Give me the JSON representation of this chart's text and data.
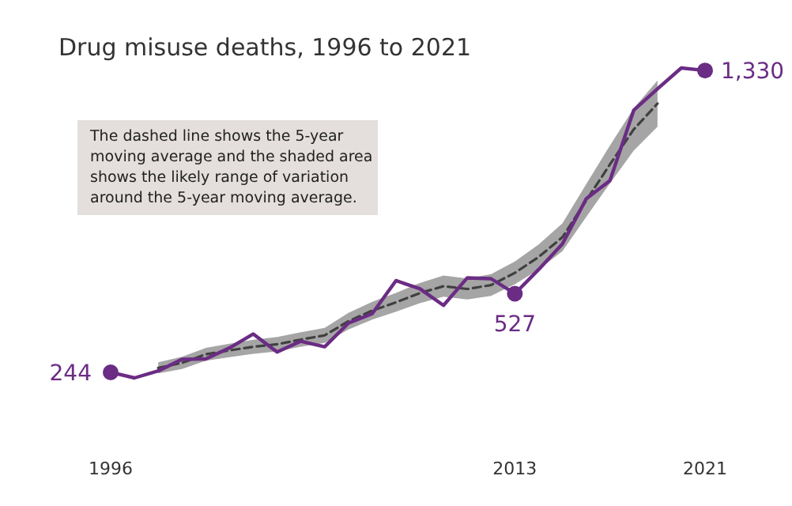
{
  "chart_data": {
    "type": "line",
    "title": "Drug misuse deaths, 1996 to 2021",
    "annotations": [
      "The dashed line shows the 5-year moving average and the shaded area shows the likely range of variation around the 5-year moving average."
    ],
    "xlim": [
      1996,
      2021
    ],
    "xticks": [
      1996,
      2013,
      2021
    ],
    "tick_labels": "x",
    "series": [
      {
        "color": "#404040",
        "line_style": "dashed",
        "x": [
          1998,
          1999,
          2000,
          2001,
          2002,
          2003,
          2004,
          2005,
          2006,
          2007,
          2008,
          2009,
          2010,
          2011,
          2012,
          2013,
          2014,
          2015,
          2016,
          2017,
          2018,
          2019
        ],
        "values": [
          260,
          278,
          309,
          323,
          336,
          345,
          362,
          377,
          428,
          466,
          496,
          529,
          554,
          544,
          558,
          602,
          659,
          730,
          862,
          992,
          1118,
          1211
        ],
        "lower": [
          240,
          256,
          286,
          299,
          311,
          319,
          336,
          350,
          398,
          434,
          462,
          493,
          516,
          506,
          519,
          561,
          614,
          680,
          803,
          924,
          1042,
          1128
        ],
        "upper": [
          280,
          300,
          332,
          347,
          361,
          371,
          388,
          404,
          458,
          498,
          530,
          565,
          592,
          582,
          597,
          643,
          704,
          780,
          921,
          1060,
          1194,
          1294
        ]
      },
      {
        "color": "#6b2c84",
        "line_style": "solid",
        "x": [
          1996,
          1997,
          1998,
          1999,
          2000,
          2001,
          2002,
          2003,
          2004,
          2005,
          2006,
          2007,
          2008,
          2009,
          2010,
          2011,
          2012,
          2013,
          2014,
          2015,
          2016,
          2017,
          2018,
          2019,
          2020,
          2021
        ],
        "values": [
          244,
          224,
          249,
          291,
          292,
          332,
          382,
          317,
          356,
          336,
          421,
          455,
          574,
          545,
          485,
          584,
          581,
          527,
          614,
          706,
          868,
          934,
          1187,
          1264,
          1339,
          1330
        ],
        "value_labels": [
          "244",
          null,
          null,
          null,
          null,
          null,
          null,
          null,
          null,
          null,
          null,
          null,
          null,
          null,
          null,
          null,
          null,
          "527",
          null,
          null,
          null,
          null,
          null,
          null,
          null,
          "1,330"
        ]
      }
    ]
  }
}
